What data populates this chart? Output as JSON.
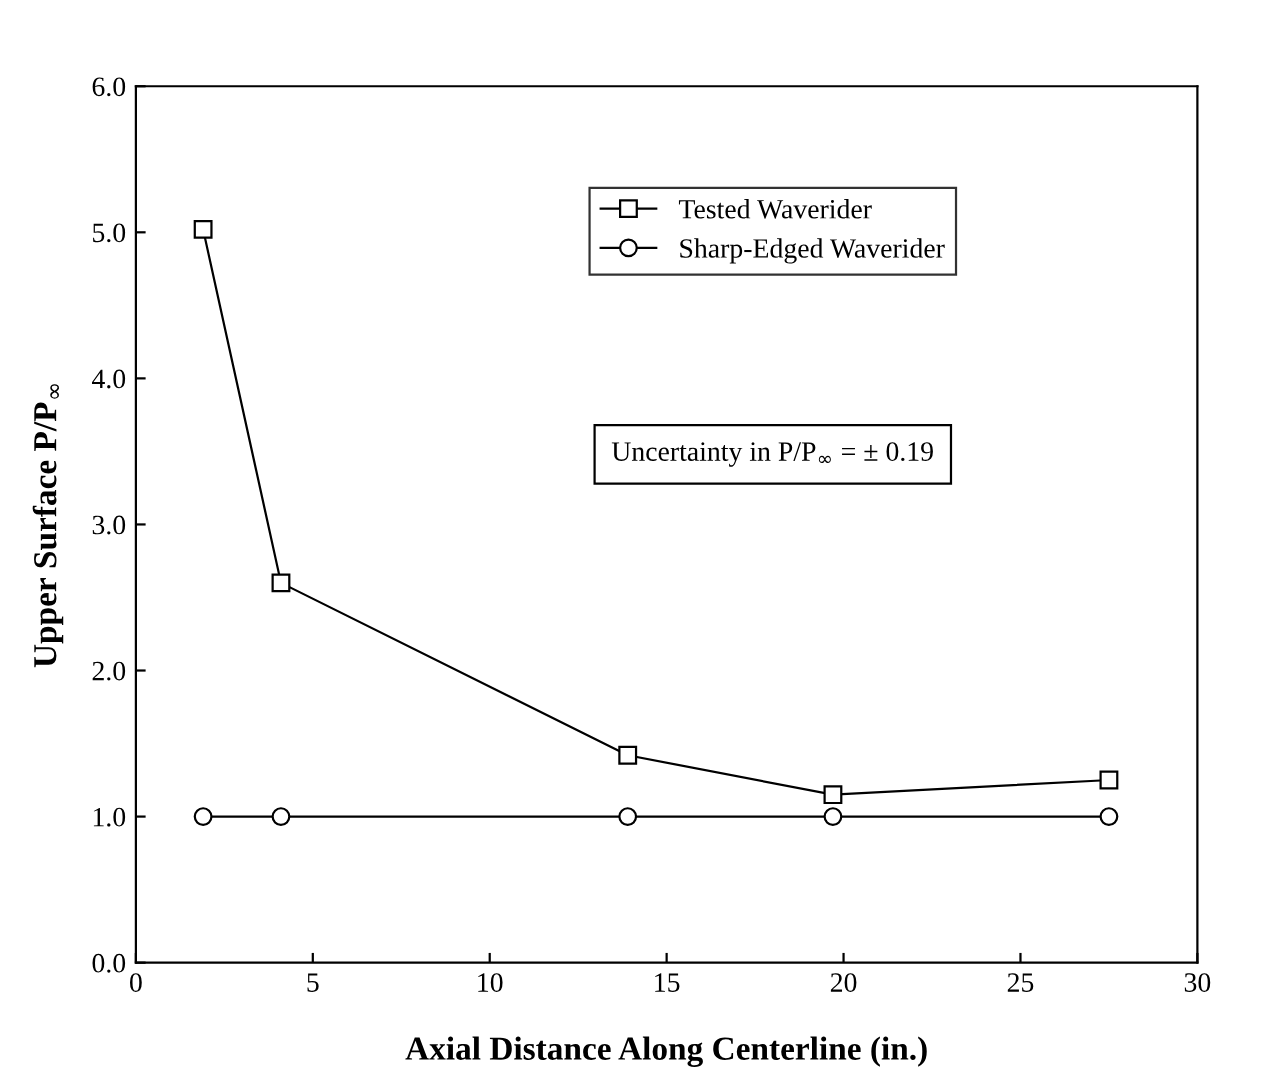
{
  "chart_data": {
    "type": "line",
    "xlabel": "Axial Distance Along Centerline (in.)",
    "ylabel": "Upper Surface P/P$_{∞}$",
    "xlim": [
      0,
      30
    ],
    "xticks": [
      0,
      5,
      10,
      15,
      20,
      25,
      30
    ],
    "ylim": [
      0,
      6
    ],
    "yticks": [
      {
        "value": 0,
        "label": "0.0"
      },
      {
        "value": 1,
        "label": "1.0"
      },
      {
        "value": 2,
        "label": "2.0"
      },
      {
        "value": 3,
        "label": "3.0"
      },
      {
        "value": 4,
        "label": "4.0"
      },
      {
        "value": 5,
        "label": "5.0"
      },
      {
        "value": 6,
        "label": "6.0"
      }
    ],
    "x": [
      1.9,
      4.1,
      13.9,
      19.7,
      27.5
    ],
    "series": [
      {
        "name": "Tested Waverider",
        "color": "#000000",
        "marker": "square",
        "values": [
          5.02,
          2.6,
          1.42,
          1.15,
          1.25
        ]
      },
      {
        "name": "Sharp-Edged Waverider",
        "color": "#000000",
        "marker": "circle",
        "values": [
          1.0,
          1.0,
          1.0,
          1.0,
          1.0
        ]
      }
    ],
    "legend": "top",
    "grid": false,
    "line_style": "solid",
    "annotations": [
      "Uncertainty in P/P$_{∞}$ = ± 0.19"
    ]
  }
}
